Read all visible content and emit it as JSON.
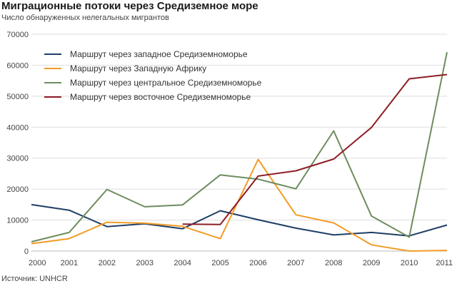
{
  "title": "Миграционные потоки через Средиземное море",
  "subtitle": "Число обнаруженных нелегальных мигрантов",
  "source": "Источник: UNHCR",
  "chart_data": {
    "type": "line",
    "title": "Миграционные потоки через Средиземное море",
    "subtitle": "Число обнаруженных нелегальных мигрантов",
    "xlabel": "",
    "ylabel": "",
    "x": [
      "2000",
      "2001",
      "2002",
      "2003",
      "2004",
      "2005",
      "2006",
      "2007",
      "2008",
      "2009",
      "2010",
      "2011"
    ],
    "ylim": [
      0,
      70000
    ],
    "yticks": [
      "0",
      "10000",
      "20000",
      "30000",
      "40000",
      "50000",
      "60000",
      "70000"
    ],
    "grid": true,
    "legend": "top-left",
    "series": [
      {
        "name": "Маршрут через западное Средиземноморье",
        "color": "#1f3f66",
        "values": [
          15000,
          13200,
          7900,
          8800,
          7200,
          13000,
          10100,
          7400,
          5200,
          6000,
          4900,
          8400
        ]
      },
      {
        "name": "Маршрут через Западную Африку",
        "color": "#f39c26",
        "values": [
          2400,
          4000,
          9300,
          9000,
          8000,
          4000,
          29600,
          11700,
          9100,
          2000,
          0,
          200
        ]
      },
      {
        "name": "Маршрут через центральное Средиземноморье",
        "color": "#6e8c5e",
        "values": [
          3000,
          6000,
          19900,
          14300,
          14900,
          24600,
          23200,
          20100,
          38800,
          11300,
          4500,
          64200
        ]
      },
      {
        "name": "Маршрут через восточное Средиземноморье",
        "color": "#8e1e26",
        "values": [
          null,
          null,
          null,
          null,
          8700,
          8600,
          24200,
          25900,
          29700,
          39900,
          55600,
          57000
        ]
      }
    ]
  }
}
